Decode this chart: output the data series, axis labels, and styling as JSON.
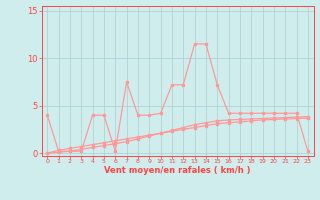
{
  "x": [
    0,
    1,
    2,
    3,
    4,
    5,
    6,
    7,
    8,
    9,
    10,
    11,
    12,
    13,
    14,
    15,
    16,
    17,
    18,
    19,
    20,
    21,
    22,
    23
  ],
  "rafales": [
    4,
    0.2,
    0.2,
    0.2,
    4,
    4,
    0.2,
    7.5,
    4,
    4,
    4.2,
    7.2,
    7.2,
    11.5,
    11.5,
    7.2,
    4.2,
    4.2,
    4.2,
    4.2,
    4.2,
    4.2,
    4.2,
    0.2
  ],
  "moyen": [
    0,
    0.3,
    0.5,
    0.7,
    0.9,
    1.1,
    1.3,
    1.5,
    1.7,
    1.9,
    2.1,
    2.3,
    2.5,
    2.7,
    2.9,
    3.1,
    3.2,
    3.3,
    3.4,
    3.5,
    3.55,
    3.6,
    3.65,
    3.7
  ],
  "line3": [
    0,
    0.1,
    0.2,
    0.4,
    0.6,
    0.8,
    1.0,
    1.2,
    1.5,
    1.8,
    2.1,
    2.4,
    2.7,
    3.0,
    3.2,
    3.4,
    3.5,
    3.55,
    3.6,
    3.65,
    3.7,
    3.75,
    3.8,
    3.85
  ],
  "line_color": "#FF9999",
  "bg_color": "#D0EDED",
  "grid_color": "#AACECE",
  "axis_color": "#FF4444",
  "ylabel_ticks": [
    0,
    5,
    10,
    15
  ],
  "xlabel": "Vent moyen/en rafales ( km/h )",
  "ylim": [
    -0.3,
    15.5
  ],
  "xlim": [
    -0.5,
    23.5
  ]
}
